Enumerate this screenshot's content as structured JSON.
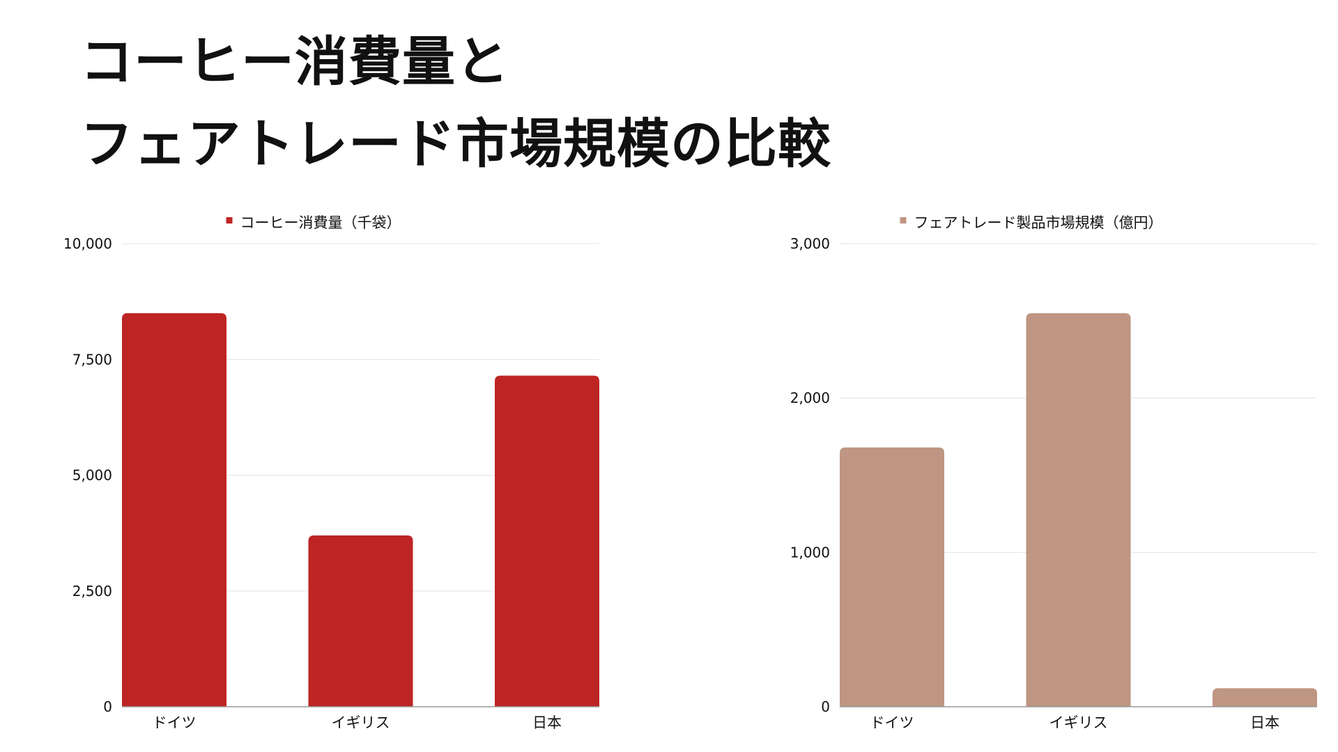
{
  "page": {
    "title_line1": "コーヒー消費量と",
    "title_line2": "フェアトレード市場規模の比較"
  },
  "chart_data": [
    {
      "type": "bar",
      "categories": [
        "ドイツ",
        "イギリス",
        "日本"
      ],
      "series": [
        {
          "name": "コーヒー消費量（千袋）",
          "values": [
            8500,
            3700,
            7150
          ],
          "color": "#be2424"
        }
      ],
      "ylim": [
        0,
        10000
      ],
      "yticks": [
        0,
        2500,
        5000,
        7500,
        10000
      ],
      "ytick_labels": [
        "0",
        "2,500",
        "5,000",
        "7,500",
        "10,000"
      ],
      "title": "",
      "xlabel": "",
      "ylabel": "",
      "grid": true,
      "legend_position": "top-center"
    },
    {
      "type": "bar",
      "categories": [
        "ドイツ",
        "イギリス",
        "日本"
      ],
      "series": [
        {
          "name": "フェアトレード製品市場規模（億円）",
          "values": [
            1680,
            2550,
            120
          ],
          "color": "#bf9682"
        }
      ],
      "ylim": [
        0,
        3000
      ],
      "yticks": [
        0,
        1000,
        2000,
        3000
      ],
      "ytick_labels": [
        "0",
        "1,000",
        "2,000",
        "3,000"
      ],
      "title": "",
      "xlabel": "",
      "ylabel": "",
      "grid": true,
      "legend_position": "top-center"
    }
  ]
}
